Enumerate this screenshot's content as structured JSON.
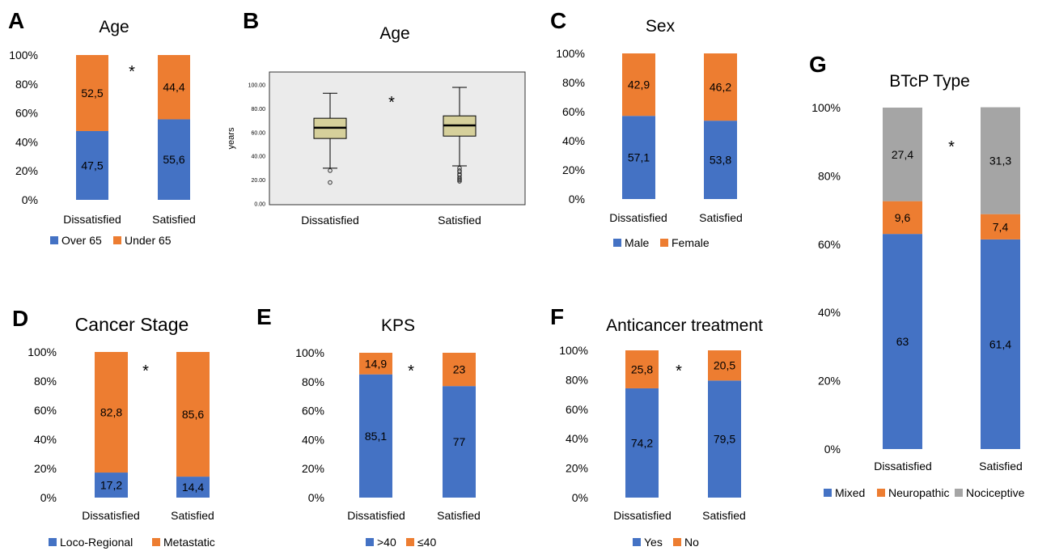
{
  "colors": {
    "blue": "#4472C4",
    "orange": "#ED7D31",
    "gray": "#A5A5A5",
    "box_fill": "#D6D09B",
    "box_panel": "#EBEBEB",
    "axis_text": "#000000",
    "grid": "#D9D9D9"
  },
  "chart_data": [
    {
      "panel": "A",
      "type": "bar",
      "stacked": true,
      "title": "Age",
      "categories": [
        "Dissatisfied",
        "Satisfied"
      ],
      "series": [
        {
          "name": "Over 65",
          "values": [
            47.5,
            55.6
          ],
          "labels": [
            "47,5",
            "55,6"
          ],
          "color": "#4472C4"
        },
        {
          "name": "Under 65",
          "values": [
            52.5,
            44.4
          ],
          "labels": [
            "52,5",
            "44,4"
          ],
          "color": "#ED7D31"
        }
      ],
      "yticks": [
        "0%",
        "20%",
        "40%",
        "60%",
        "80%",
        "100%"
      ],
      "ylim": [
        0,
        100
      ],
      "annotation": "*",
      "legend_position": "bottom"
    },
    {
      "panel": "B",
      "type": "boxplot",
      "title": "Age",
      "categories": [
        "Dissatisfied",
        "Satisfied"
      ],
      "ylabel": "years",
      "yticks": [
        "0.00",
        "20.00",
        "40.00",
        "60.00",
        "80.00",
        "100.00"
      ],
      "ylim": [
        0,
        100
      ],
      "boxes": [
        {
          "name": "Dissatisfied",
          "whisker_low": 30,
          "q1": 55,
          "median": 64,
          "q3": 72,
          "whisker_high": 93,
          "outliers": [
            28,
            18
          ]
        },
        {
          "name": "Satisfied",
          "whisker_low": 32,
          "q1": 57,
          "median": 66,
          "q3": 74,
          "whisker_high": 98,
          "outliers": [
            30,
            28,
            27,
            25,
            24,
            22,
            21,
            20,
            19
          ]
        }
      ],
      "annotation": "*"
    },
    {
      "panel": "C",
      "type": "bar",
      "stacked": true,
      "title": "Sex",
      "categories": [
        "Dissatisfied",
        "Satisfied"
      ],
      "series": [
        {
          "name": "Male",
          "values": [
            57.1,
            53.8
          ],
          "labels": [
            "57,1",
            "53,8"
          ],
          "color": "#4472C4"
        },
        {
          "name": "Female",
          "values": [
            42.9,
            46.2
          ],
          "labels": [
            "42,9",
            "46,2"
          ],
          "color": "#ED7D31"
        }
      ],
      "yticks": [
        "0%",
        "20%",
        "40%",
        "60%",
        "80%",
        "100%"
      ],
      "ylim": [
        0,
        100
      ],
      "annotation": "",
      "legend_position": "bottom"
    },
    {
      "panel": "D",
      "type": "bar",
      "stacked": true,
      "title": "Cancer Stage",
      "categories": [
        "Dissatisfied",
        "Satisfied"
      ],
      "series": [
        {
          "name": "Loco-Regional",
          "values": [
            17.2,
            14.4
          ],
          "labels": [
            "17,2",
            "14,4"
          ],
          "color": "#4472C4"
        },
        {
          "name": "Metastatic",
          "values": [
            82.8,
            85.6
          ],
          "labels": [
            "82,8",
            "85,6"
          ],
          "color": "#ED7D31"
        }
      ],
      "yticks": [
        "0%",
        "20%",
        "40%",
        "60%",
        "80%",
        "100%"
      ],
      "ylim": [
        0,
        100
      ],
      "annotation": "*",
      "legend_position": "bottom"
    },
    {
      "panel": "E",
      "type": "bar",
      "stacked": true,
      "title": "KPS",
      "categories": [
        "Dissatisfied",
        "Satisfied"
      ],
      "series": [
        {
          "name": ">40",
          "values": [
            85.1,
            77
          ],
          "labels": [
            "85,1",
            "77"
          ],
          "color": "#4472C4"
        },
        {
          "name": "≤40",
          "values": [
            14.9,
            23
          ],
          "labels": [
            "14,9",
            "23"
          ],
          "color": "#ED7D31"
        }
      ],
      "yticks": [
        "0%",
        "20%",
        "40%",
        "60%",
        "80%",
        "100%"
      ],
      "ylim": [
        0,
        100
      ],
      "annotation": "*",
      "legend_position": "bottom"
    },
    {
      "panel": "F",
      "type": "bar",
      "stacked": true,
      "title": "Anticancer treatment",
      "categories": [
        "Dissatisfied",
        "Satisfied"
      ],
      "series": [
        {
          "name": "Yes",
          "values": [
            74.2,
            79.5
          ],
          "labels": [
            "74,2",
            "79,5"
          ],
          "color": "#4472C4"
        },
        {
          "name": "No",
          "values": [
            25.8,
            20.5
          ],
          "labels": [
            "25,8",
            "20,5"
          ],
          "color": "#ED7D31"
        }
      ],
      "yticks": [
        "0%",
        "20%",
        "40%",
        "60%",
        "80%",
        "100%"
      ],
      "ylim": [
        0,
        100
      ],
      "annotation": "*",
      "legend_position": "bottom"
    },
    {
      "panel": "G",
      "type": "bar",
      "stacked": true,
      "title": "BTcP Type",
      "categories": [
        "Dissatisfied",
        "Satisfied"
      ],
      "series": [
        {
          "name": "Mixed",
          "values": [
            63,
            61.4
          ],
          "labels": [
            "63",
            "61,4"
          ],
          "color": "#4472C4"
        },
        {
          "name": "Neuropathic",
          "values": [
            9.6,
            7.4
          ],
          "labels": [
            "9,6",
            "7,4"
          ],
          "color": "#ED7D31"
        },
        {
          "name": "Nociceptive",
          "values": [
            27.4,
            31.3
          ],
          "labels": [
            "27,4",
            "31,3"
          ],
          "color": "#A5A5A5"
        }
      ],
      "yticks": [
        "0%",
        "20%",
        "40%",
        "60%",
        "80%",
        "100%"
      ],
      "ylim": [
        0,
        100
      ],
      "annotation": "*",
      "legend_position": "bottom"
    }
  ]
}
